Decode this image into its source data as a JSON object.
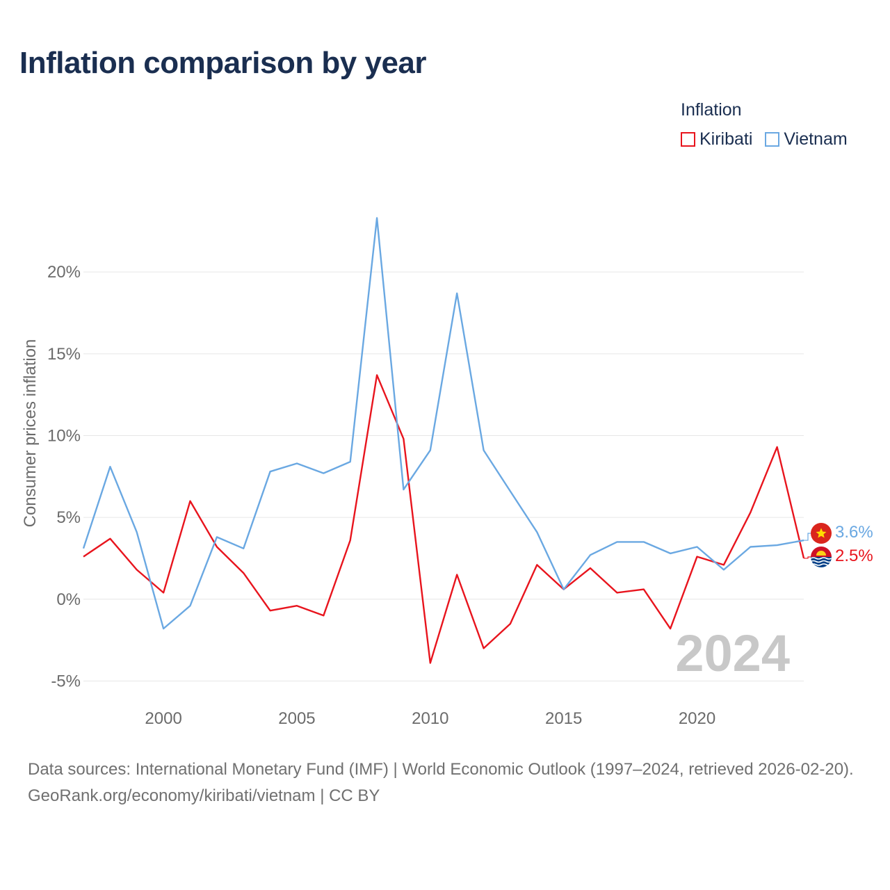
{
  "title": "Inflation comparison by year",
  "legend": {
    "title": "Inflation",
    "items": [
      {
        "label": "Kiribati",
        "color": "#e8141d"
      },
      {
        "label": "Vietnam",
        "color": "#6aa8e2"
      }
    ]
  },
  "watermark_year": "2024",
  "footer": {
    "sources": "Data sources: International Monetary Fund (IMF) | World Economic Outlook (1997–2024, retrieved 2026-02-20).",
    "credit": "GeoRank.org/economy/kiribati/vietnam | CC BY"
  },
  "chart_data": {
    "type": "line",
    "title": "Inflation comparison by year",
    "xlabel": "",
    "ylabel": "Consumer prices inflation",
    "xlim": [
      1997,
      2024
    ],
    "ylim": [
      -6.3,
      26
    ],
    "x_ticks": [
      2000,
      2005,
      2010,
      2015,
      2020
    ],
    "y_ticks": [
      -5,
      0,
      5,
      10,
      15,
      20
    ],
    "y_tick_labels": [
      "-5%",
      "0%",
      "5%",
      "10%",
      "15%",
      "20%"
    ],
    "x": [
      1997,
      1998,
      1999,
      2000,
      2001,
      2002,
      2003,
      2004,
      2005,
      2006,
      2007,
      2008,
      2009,
      2010,
      2011,
      2012,
      2013,
      2014,
      2015,
      2016,
      2017,
      2018,
      2019,
      2020,
      2021,
      2022,
      2023,
      2024
    ],
    "series": [
      {
        "name": "Kiribati",
        "color": "#e8141d",
        "end_label": "2.5%",
        "values": [
          2.6,
          3.7,
          1.8,
          0.4,
          6.0,
          3.2,
          1.6,
          -0.7,
          -0.4,
          -1.0,
          3.6,
          13.7,
          9.8,
          -3.9,
          1.5,
          -3.0,
          -1.5,
          2.1,
          0.6,
          1.9,
          0.4,
          0.6,
          -1.8,
          2.6,
          2.1,
          5.3,
          9.3,
          2.5
        ]
      },
      {
        "name": "Vietnam",
        "color": "#6aa8e2",
        "end_label": "3.6%",
        "values": [
          3.1,
          8.1,
          4.1,
          -1.8,
          -0.4,
          3.8,
          3.1,
          7.8,
          8.3,
          7.7,
          8.4,
          23.3,
          6.7,
          9.1,
          18.7,
          9.1,
          6.6,
          4.1,
          0.6,
          2.7,
          3.5,
          3.5,
          2.8,
          3.2,
          1.8,
          3.2,
          3.3,
          3.6
        ]
      }
    ],
    "grid": true
  }
}
